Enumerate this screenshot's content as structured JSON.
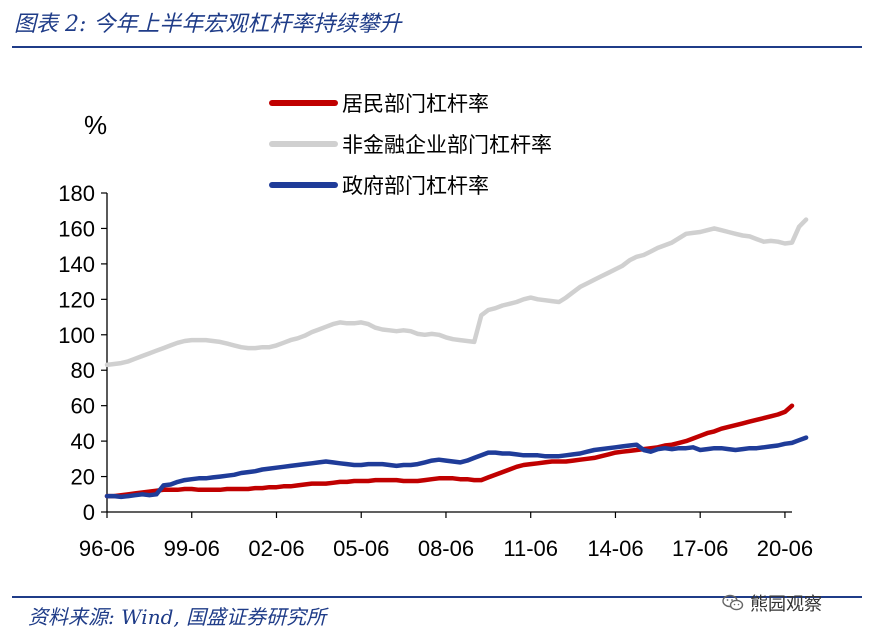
{
  "header": {
    "title": "图表 2:  今年上半年宏观杠杆率持续攀升"
  },
  "footer": {
    "source": "资料来源:  Wind,  国盛证券研究所",
    "watermark": "熊园观察",
    "watermark_icon": "wechat-icon"
  },
  "chart_data": {
    "type": "line",
    "title": "图表 2:  今年上半年宏观杠杆率持续攀升",
    "xlabel": "",
    "ylabel": "%",
    "ylim": [
      0,
      180
    ],
    "yticks": [
      0,
      20,
      40,
      60,
      80,
      100,
      120,
      140,
      160,
      180
    ],
    "xticks": [
      "96-06",
      "99-06",
      "02-06",
      "05-06",
      "08-06",
      "11-06",
      "14-06",
      "17-06",
      "20-06"
    ],
    "x_start": "1996-06",
    "x_end": "2020-06",
    "frequency": "quarterly",
    "grid": false,
    "legend_position": "top-center",
    "series": [
      {
        "name": "居民部门杠杆率",
        "color": "#c00000",
        "values": [
          9,
          9,
          9.5,
          10,
          10.5,
          11,
          11.5,
          12,
          12.5,
          12.5,
          12.5,
          13,
          13,
          12.5,
          12.5,
          12.5,
          12.5,
          13,
          13,
          13,
          13,
          13.5,
          13.5,
          14,
          14,
          14.5,
          14.5,
          15,
          15.5,
          16,
          16,
          16,
          16.5,
          17,
          17,
          17.5,
          17.5,
          17.5,
          18,
          18,
          18,
          18,
          17.5,
          17.5,
          17.5,
          18,
          18.5,
          19,
          19,
          19,
          18.5,
          18.5,
          18,
          18,
          19.5,
          21,
          22.5,
          24,
          25.5,
          26.5,
          27,
          27.5,
          28,
          28.5,
          28.5,
          28.5,
          29,
          29.5,
          30,
          30.5,
          31.5,
          32.5,
          33.5,
          34,
          34.5,
          35,
          35.5,
          36,
          36.5,
          37.5,
          38,
          39,
          40,
          41.5,
          43,
          44.5,
          45.5,
          47,
          48,
          49,
          50,
          51,
          52,
          53,
          54,
          55,
          56.5,
          60
        ]
      },
      {
        "name": "非金融企业部门杠杆率",
        "color": "#d0d0d0",
        "values": [
          83,
          83.5,
          84,
          85,
          86.5,
          88,
          89.5,
          91,
          92.5,
          94,
          95.5,
          96.5,
          97,
          97,
          97,
          96.5,
          96,
          95,
          94,
          93,
          92.5,
          92.5,
          93,
          93,
          94,
          95.5,
          97,
          98,
          99.5,
          101.5,
          103,
          104.5,
          106,
          107,
          106.5,
          106.5,
          107,
          106,
          104,
          103,
          102.5,
          102,
          102.5,
          102,
          100.5,
          100,
          100.5,
          100,
          98.5,
          97.5,
          97,
          96.5,
          96,
          111,
          114,
          115,
          116.5,
          117.5,
          118.5,
          120,
          121,
          120,
          119.5,
          119,
          118.5,
          121,
          124,
          127,
          129,
          131,
          133,
          135,
          137,
          139,
          142,
          144,
          145,
          147,
          149,
          150.5,
          152,
          154.5,
          157,
          157.5,
          158,
          159,
          160,
          159,
          158,
          157,
          156,
          155.5,
          154,
          152.5,
          153,
          152.5,
          151.5,
          152,
          161,
          165
        ]
      },
      {
        "name": "政府部门杠杆率",
        "color": "#1f3c99",
        "values": [
          9,
          9,
          8.5,
          9,
          9.5,
          10,
          9.5,
          10,
          15,
          15.5,
          17,
          18,
          18.5,
          19,
          19,
          19.5,
          20,
          20.5,
          21,
          22,
          22.5,
          23,
          24,
          24.5,
          25,
          25.5,
          26,
          26.5,
          27,
          27.5,
          28,
          28.5,
          28,
          27.5,
          27,
          26.5,
          26.5,
          27,
          27,
          27,
          26.5,
          26,
          26.5,
          26.5,
          27,
          28,
          29,
          29.5,
          29,
          28.5,
          28,
          29,
          30.5,
          32,
          33.5,
          33.5,
          33,
          33,
          32.5,
          32,
          32,
          32,
          31.5,
          31.5,
          31.5,
          32,
          32.5,
          33,
          34,
          35,
          35.5,
          36,
          36.5,
          37,
          37.5,
          38,
          35,
          34,
          35.5,
          36,
          35.5,
          36,
          36,
          36.5,
          35,
          35.5,
          36,
          36,
          35.5,
          35,
          35.5,
          36,
          36,
          36.5,
          37,
          37.5,
          38.5,
          39,
          40.5,
          42
        ]
      }
    ]
  }
}
